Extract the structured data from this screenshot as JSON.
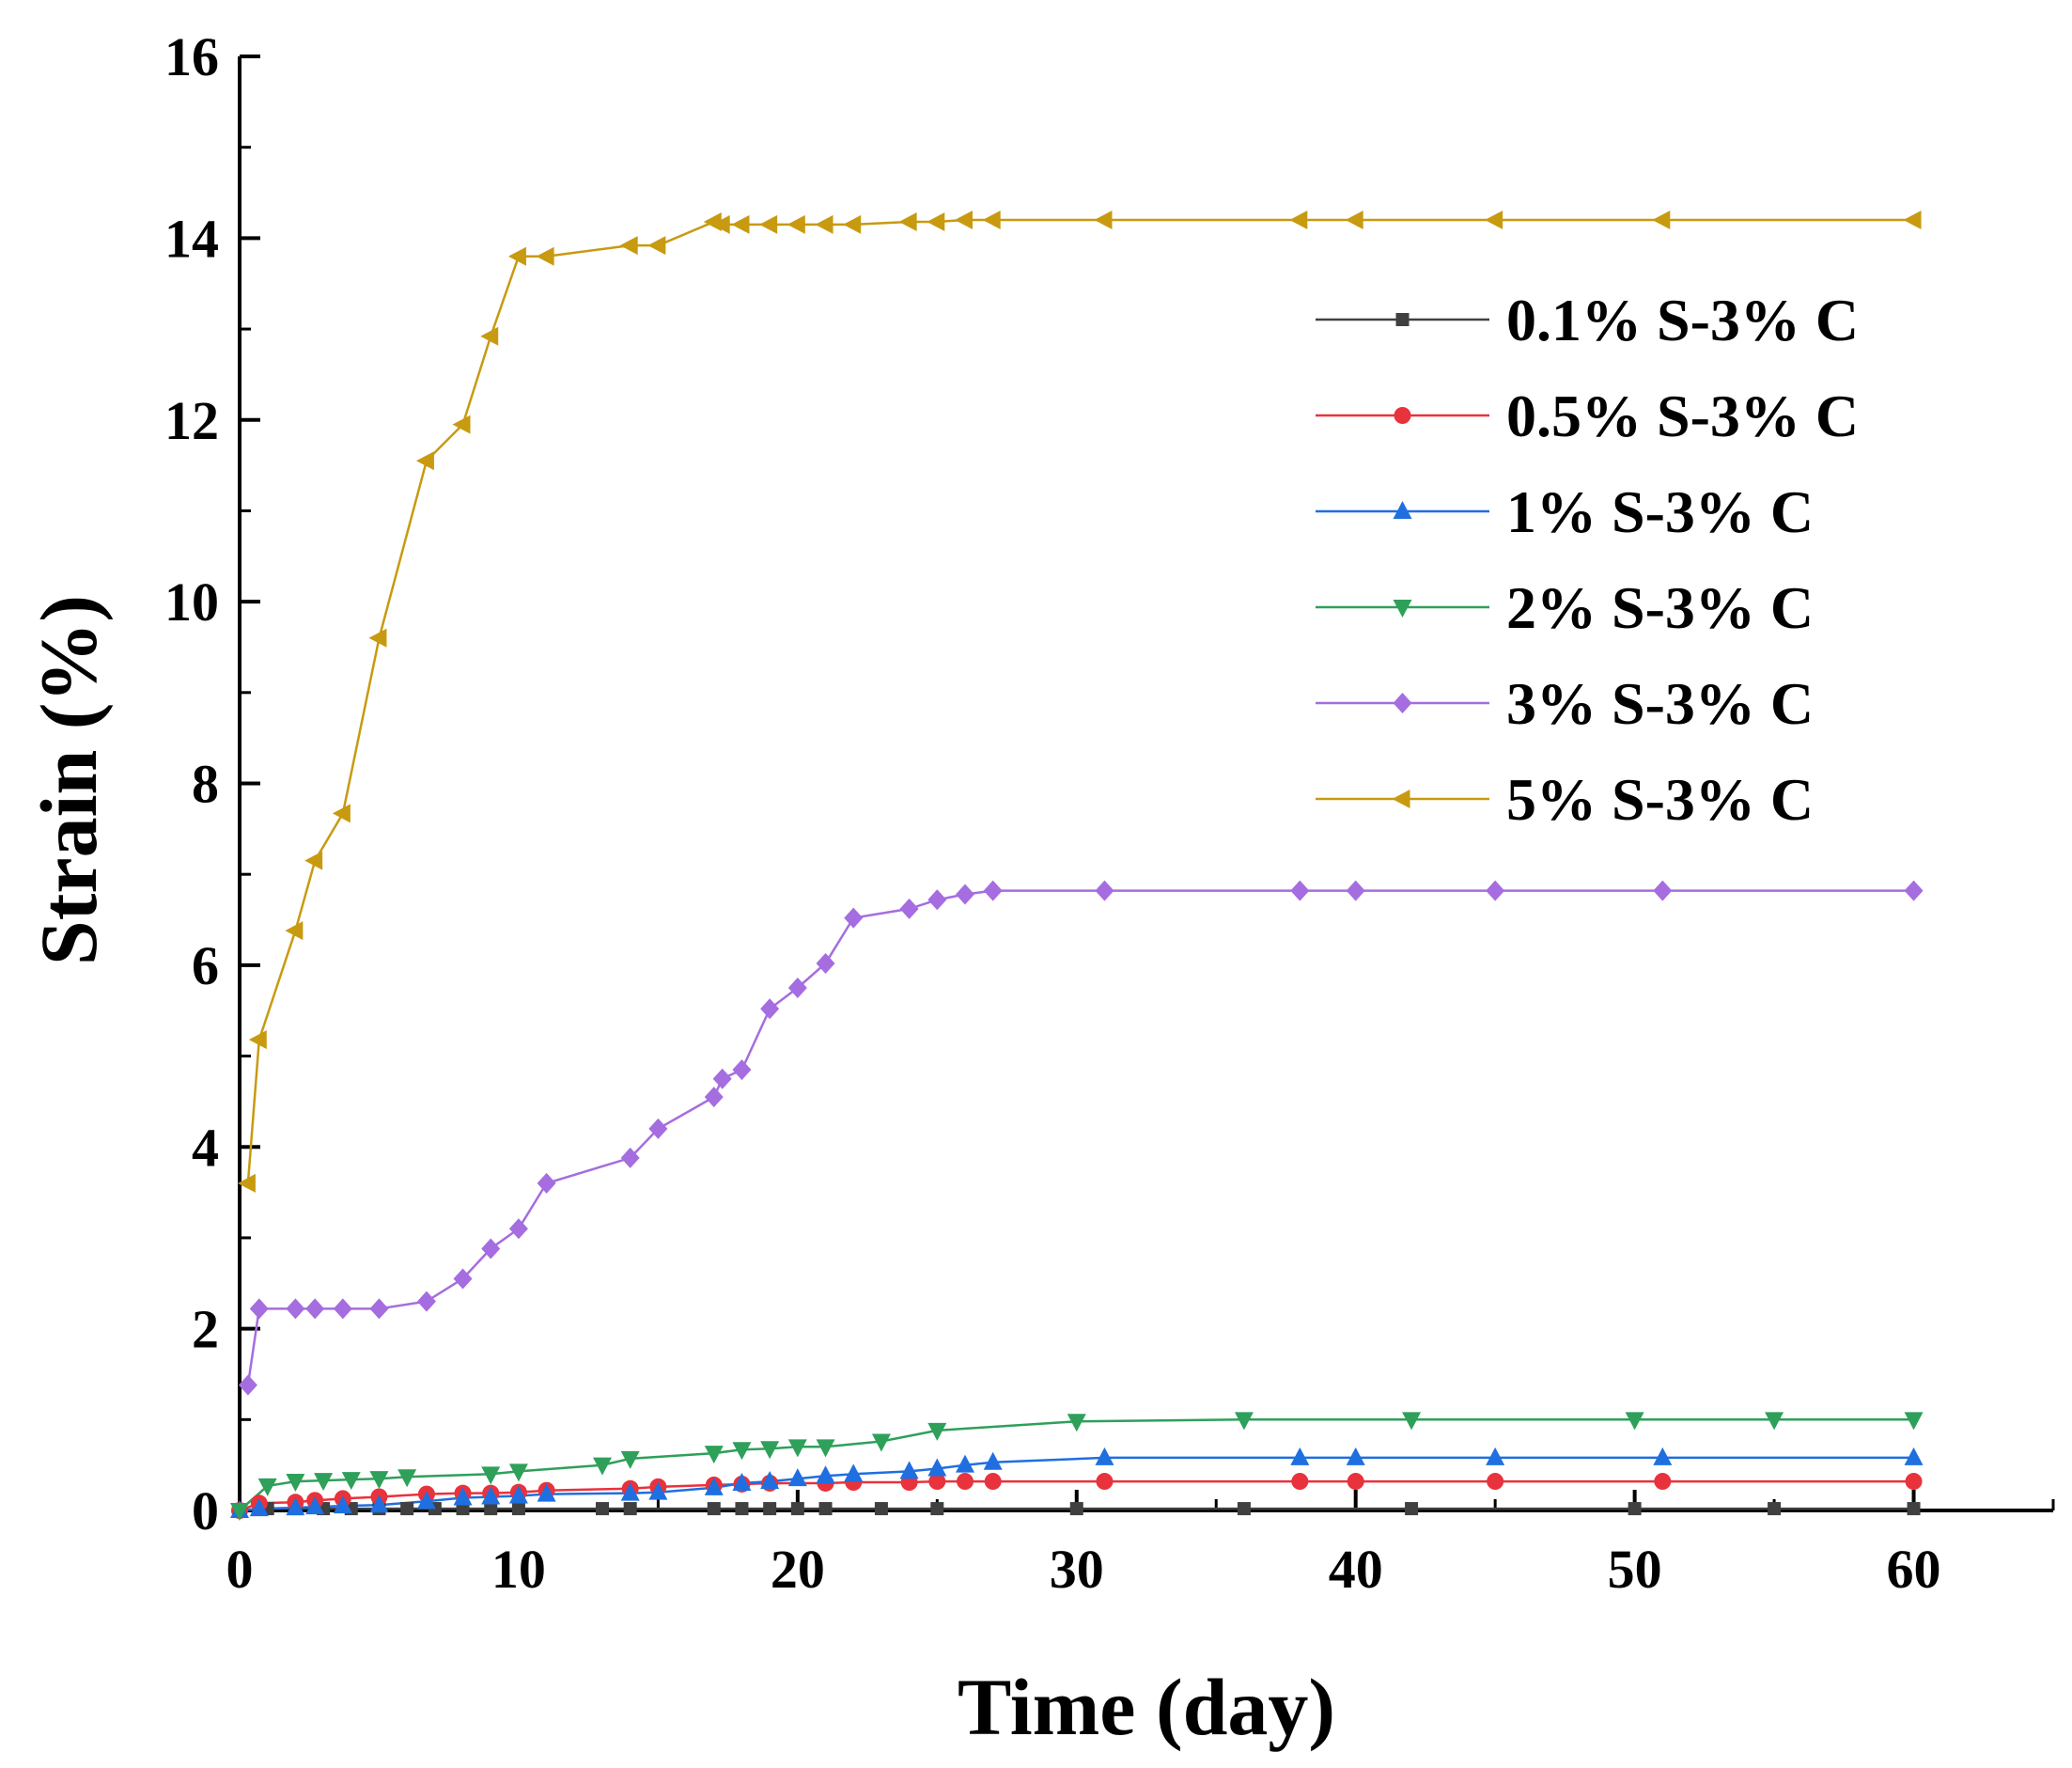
{
  "chart_data": {
    "type": "line",
    "title": "",
    "xlabel": "Time (day)",
    "ylabel": "Strain (%)",
    "xlim": [
      0,
      65
    ],
    "ylim": [
      0,
      16
    ],
    "xticks": [
      0,
      10,
      20,
      30,
      40,
      50,
      60
    ],
    "yticks": [
      0,
      2,
      4,
      6,
      8,
      10,
      12,
      14,
      16
    ],
    "grid": false,
    "legend_position": "upper-right",
    "series": [
      {
        "name": "0.1% S-3% C",
        "color": "#404040",
        "marker": "square",
        "x": [
          0,
          1,
          2,
          3,
          4,
          5,
          6,
          7,
          8,
          9,
          10,
          13,
          14,
          17,
          18,
          19,
          20,
          21,
          23,
          25,
          30,
          36,
          42,
          50,
          55,
          60
        ],
        "y": [
          0,
          0.02,
          0.02,
          0.02,
          0.02,
          0.02,
          0.02,
          0.02,
          0.02,
          0.02,
          0.02,
          0.02,
          0.02,
          0.02,
          0.02,
          0.02,
          0.02,
          0.02,
          0.02,
          0.02,
          0.02,
          0.02,
          0.02,
          0.02,
          0.02,
          0.02
        ]
      },
      {
        "name": "0.5% S-3% C",
        "color": "#e8323c",
        "marker": "circle",
        "x": [
          0,
          0.7,
          2,
          2.7,
          3.7,
          5,
          6.7,
          8,
          9,
          10,
          11,
          14,
          15,
          17,
          18,
          19,
          21,
          22,
          24,
          25,
          26,
          27,
          31,
          38,
          40,
          45,
          51,
          60
        ],
        "y": [
          0,
          0.08,
          0.09,
          0.11,
          0.13,
          0.15,
          0.18,
          0.19,
          0.19,
          0.2,
          0.22,
          0.24,
          0.26,
          0.28,
          0.29,
          0.3,
          0.3,
          0.31,
          0.31,
          0.32,
          0.32,
          0.32,
          0.32,
          0.32,
          0.32,
          0.32,
          0.32,
          0.32
        ]
      },
      {
        "name": "1% S-3% C",
        "color": "#1f6fe0",
        "marker": "triangle-up",
        "x": [
          0,
          0.7,
          2,
          2.7,
          3.7,
          5,
          6.7,
          8,
          9,
          10,
          11,
          14,
          15,
          17,
          18,
          19,
          20,
          21,
          22,
          24,
          25,
          26,
          27,
          31,
          38,
          40,
          45,
          51,
          60
        ],
        "y": [
          0,
          0.02,
          0.03,
          0.04,
          0.05,
          0.06,
          0.1,
          0.14,
          0.15,
          0.16,
          0.18,
          0.19,
          0.2,
          0.25,
          0.3,
          0.32,
          0.35,
          0.38,
          0.4,
          0.43,
          0.46,
          0.5,
          0.53,
          0.58,
          0.58,
          0.58,
          0.58,
          0.58,
          0.58
        ]
      },
      {
        "name": "2% S-3% C",
        "color": "#2ea05a",
        "marker": "triangle-down",
        "x": [
          0,
          1,
          2,
          3,
          4,
          5,
          6,
          9,
          10,
          13,
          14,
          17,
          18,
          19,
          20,
          21,
          23,
          25,
          30,
          36,
          42,
          50,
          55,
          60
        ],
        "y": [
          0,
          0.27,
          0.32,
          0.33,
          0.34,
          0.35,
          0.37,
          0.4,
          0.43,
          0.5,
          0.57,
          0.63,
          0.67,
          0.68,
          0.7,
          0.7,
          0.76,
          0.88,
          0.98,
          1.0,
          1.0,
          1.0,
          1.0,
          1.0
        ]
      },
      {
        "name": "3% S-3% C",
        "color": "#a56de0",
        "marker": "diamond",
        "x": [
          0.3,
          0.7,
          2,
          2.7,
          3.7,
          5,
          6.7,
          8,
          9,
          10,
          11,
          14,
          15,
          17,
          17.3,
          18,
          19,
          20,
          21,
          22,
          24,
          25,
          26,
          27,
          31,
          38,
          40,
          45,
          51,
          60
        ],
        "y": [
          1.38,
          2.22,
          2.22,
          2.22,
          2.22,
          2.22,
          2.3,
          2.55,
          2.88,
          3.1,
          3.6,
          3.88,
          4.2,
          4.55,
          4.75,
          4.85,
          5.52,
          5.75,
          6.02,
          6.52,
          6.62,
          6.72,
          6.78,
          6.82,
          6.82,
          6.82,
          6.82,
          6.82,
          6.82,
          6.82
        ]
      },
      {
        "name": "5% S-3% C",
        "color": "#c89a10",
        "marker": "triangle-left",
        "x": [
          0.3,
          0.7,
          2,
          2.7,
          3.7,
          5,
          6.7,
          8,
          9,
          10,
          11,
          14,
          15,
          17,
          17.3,
          18,
          19,
          20,
          21,
          22,
          24,
          25,
          26,
          27,
          31,
          38,
          40,
          45,
          51,
          60
        ],
        "y": [
          3.6,
          5.18,
          6.38,
          7.15,
          7.67,
          9.6,
          11.55,
          11.95,
          12.92,
          13.8,
          13.8,
          13.92,
          13.92,
          14.18,
          14.15,
          14.15,
          14.15,
          14.15,
          14.15,
          14.15,
          14.18,
          14.18,
          14.2,
          14.2,
          14.2,
          14.2,
          14.2,
          14.2,
          14.2,
          14.2
        ]
      }
    ]
  }
}
